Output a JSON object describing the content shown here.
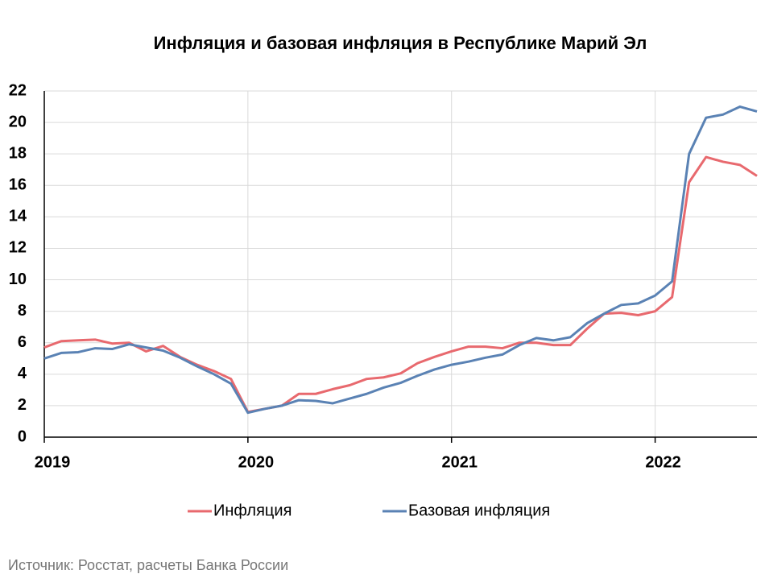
{
  "chart_data": {
    "type": "line",
    "title": "Инфляция и базовая инфляция в Республике Марий Эл",
    "x": [
      2019,
      2019.0833,
      2019.1667,
      2019.25,
      2019.3333,
      2019.4167,
      2019.5,
      2019.5833,
      2019.6667,
      2019.75,
      2019.8333,
      2019.9167,
      2020,
      2020.0833,
      2020.1667,
      2020.25,
      2020.3333,
      2020.4167,
      2020.5,
      2020.5833,
      2020.6667,
      2020.75,
      2020.8333,
      2020.9167,
      2021,
      2021.0833,
      2021.1667,
      2021.25,
      2021.3333,
      2021.4167,
      2021.5,
      2021.5833,
      2021.6667,
      2021.75,
      2021.8333,
      2021.9167,
      2022,
      2022.0833,
      2022.1667,
      2022.25,
      2022.3333,
      2022.4167,
      2022.5
    ],
    "series": [
      {
        "name": "Инфляция",
        "color": "#e8696e",
        "values": [
          5.7,
          6.1,
          6.15,
          6.2,
          5.95,
          6.0,
          5.45,
          5.8,
          5.1,
          4.6,
          4.2,
          3.7,
          1.6,
          1.8,
          2.0,
          2.75,
          2.75,
          3.05,
          3.3,
          3.7,
          3.8,
          4.05,
          4.7,
          5.1,
          5.45,
          5.75,
          5.75,
          5.65,
          6.0,
          6.0,
          5.85,
          5.85,
          6.9,
          7.85,
          7.9,
          7.75,
          8.0,
          8.9,
          16.2,
          17.8,
          17.5,
          17.3,
          16.6
        ]
      },
      {
        "name": "Базовая инфляция",
        "color": "#5a82b4",
        "values": [
          5.0,
          5.35,
          5.4,
          5.65,
          5.6,
          5.9,
          5.7,
          5.5,
          5.05,
          4.5,
          4.0,
          3.4,
          1.55,
          1.8,
          2.0,
          2.35,
          2.3,
          2.15,
          2.45,
          2.75,
          3.15,
          3.45,
          3.9,
          4.3,
          4.6,
          4.8,
          5.05,
          5.25,
          5.85,
          6.3,
          6.15,
          6.35,
          7.25,
          7.85,
          8.4,
          8.5,
          9.0,
          9.9,
          18.0,
          20.3,
          20.5,
          21.0,
          20.7
        ]
      }
    ],
    "xlim": [
      2019,
      2022.5
    ],
    "xticks": [
      2019,
      2020,
      2021,
      2022
    ],
    "ylim": [
      0,
      22
    ],
    "yticks": [
      0,
      2,
      4,
      6,
      8,
      10,
      12,
      14,
      16,
      18,
      20,
      22
    ],
    "grid": true,
    "legend": "bottom"
  },
  "source": "Источник: Росстат, расчеты Банка России"
}
